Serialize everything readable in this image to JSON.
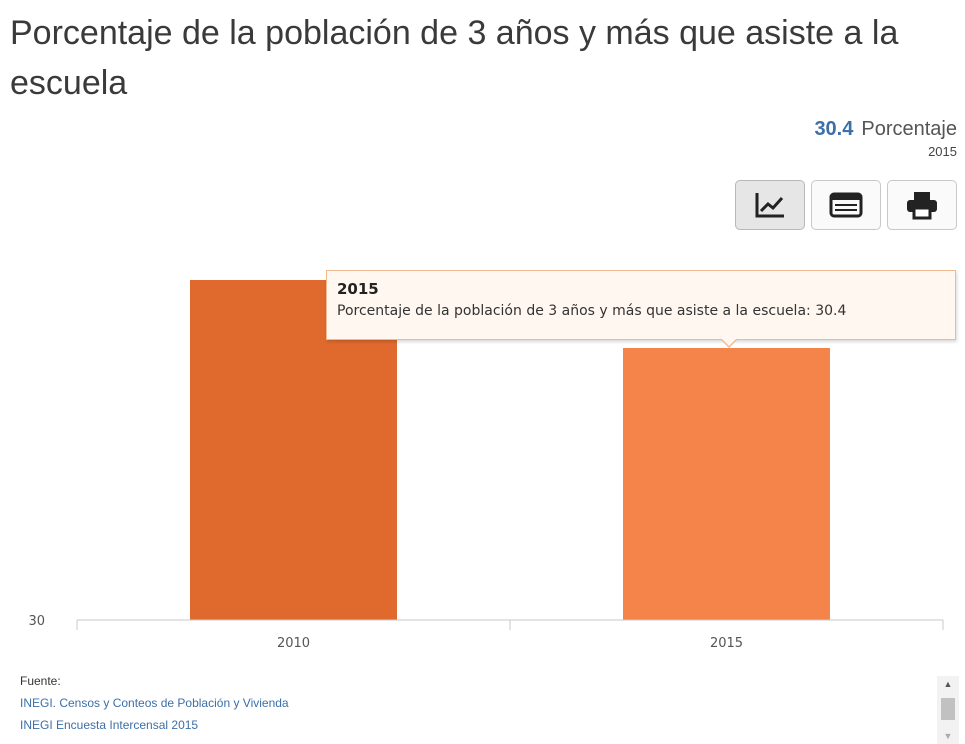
{
  "title": "Porcentaje de la población de 3 años y más que asiste a la escuela",
  "kpi": {
    "value": "30.4",
    "unit": "Porcentaje",
    "year": "2015"
  },
  "toolbar": {
    "chart_icon": "line-chart-icon",
    "table_icon": "table-icon",
    "print_icon": "print-icon"
  },
  "tooltip": {
    "title": "2015",
    "body": "Porcentaje de la población de 3 años y más que asiste a la escuela: 30.4"
  },
  "source": {
    "label": "Fuente:",
    "links": [
      "INEGI. Censos y Conteos de Población y Vivienda",
      "INEGI Encuesta Intercensal 2015"
    ]
  },
  "chart_data": {
    "type": "bar",
    "categories": [
      "2010",
      "2015"
    ],
    "values": [
      30.5,
      30.4
    ],
    "colors": [
      "#e06a2e",
      "#f5844a"
    ],
    "ytick": "30",
    "ylim": [
      30,
      30.5
    ]
  }
}
